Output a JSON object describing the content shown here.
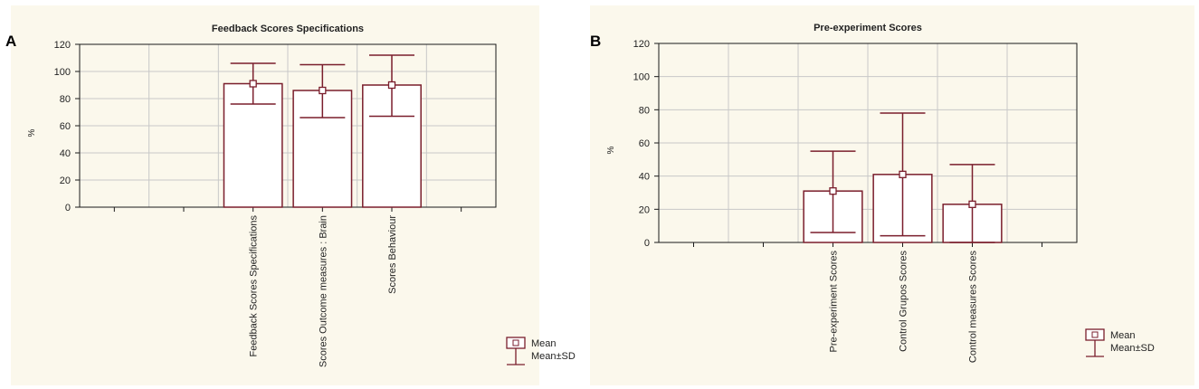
{
  "panels": [
    {
      "letter": "A",
      "background": "#fbf8ec"
    },
    {
      "letter": "B",
      "background": "#fbf8ec"
    }
  ],
  "colors": {
    "bar_stroke": "#7a1e2c",
    "axis": "#1a1a1a",
    "grid": "#c8c8c8",
    "bar_fill": "#ffffff"
  },
  "legend": {
    "mean_label": "Mean",
    "sd_label": "Mean±SD"
  },
  "chart_data": [
    {
      "type": "bar",
      "title": "Feedback Scores Specifications",
      "ylabel": "%",
      "xlabel": "",
      "ylim": [
        0,
        120
      ],
      "yticks": [
        0,
        20,
        40,
        60,
        80,
        100,
        120
      ],
      "grid": true,
      "legend_position": "bottom-right",
      "slots": 6,
      "bar_start_slot": 2,
      "categories": [
        "Feedback Scores Specifications",
        "Scores Outcome measures : Brain",
        "Scores Behaviour"
      ],
      "series": [
        {
          "values": [
            91,
            86,
            90
          ],
          "sd_low": [
            76,
            66,
            67
          ],
          "sd_high": [
            106,
            105,
            112
          ]
        }
      ]
    },
    {
      "type": "bar",
      "title": "Pre-experiment Scores",
      "ylabel": "%",
      "xlabel": "",
      "ylim": [
        0,
        120
      ],
      "yticks": [
        0,
        20,
        40,
        60,
        80,
        100,
        120
      ],
      "grid": true,
      "legend_position": "bottom-right",
      "slots": 6,
      "bar_start_slot": 2,
      "categories": [
        "Pre-experiment Scores",
        "Control Grupos Scores",
        "Control measures Scores"
      ],
      "series": [
        {
          "values": [
            31,
            41,
            23
          ],
          "sd_low": [
            6,
            4,
            0
          ],
          "sd_high": [
            55,
            78,
            47
          ]
        }
      ]
    }
  ]
}
